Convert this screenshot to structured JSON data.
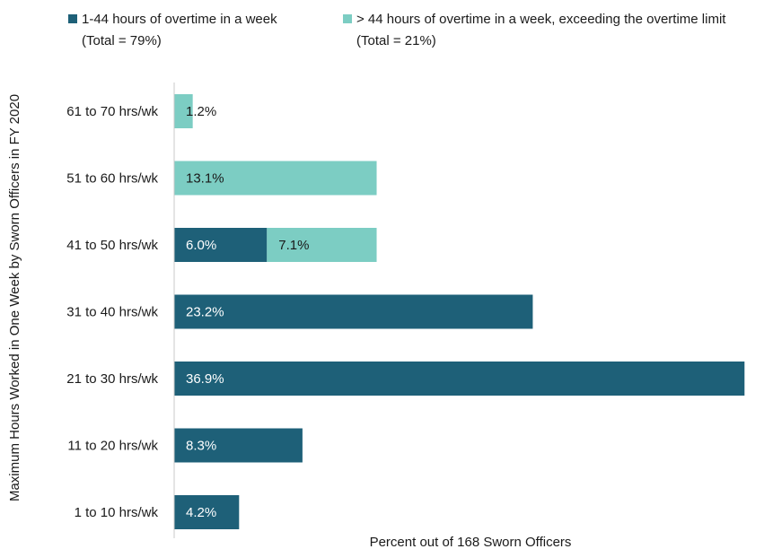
{
  "chart_data": {
    "type": "bar",
    "orientation": "horizontal",
    "stacked": true,
    "categories": [
      "61 to 70 hrs/wk",
      "51 to 60 hrs/wk",
      "41 to 50 hrs/wk",
      "31 to 40 hrs/wk",
      "21 to 30 hrs/wk",
      "11 to 20 hrs/wk",
      "1 to 10 hrs/wk"
    ],
    "series": [
      {
        "name": "1-44 hours of overtime in a week",
        "name_line2": "(Total = 79%)",
        "color": "#1e6078",
        "label_color": "#ffffff",
        "values": [
          0,
          0,
          6.0,
          23.2,
          36.9,
          8.3,
          4.2
        ],
        "labels": [
          "",
          "",
          "6.0%",
          "23.2%",
          "36.9%",
          "8.3%",
          "4.2%"
        ]
      },
      {
        "name": "> 44 hours of overtime in a week, exceeding the overtime limit",
        "name_line2": "(Total = 21%)",
        "color": "#7ccdc3",
        "label_color": "#1a1a1a",
        "values": [
          1.2,
          13.1,
          7.1,
          0,
          0,
          0,
          0
        ],
        "labels": [
          "1.2%",
          "13.1%",
          "7.1%",
          "",
          "",
          "",
          ""
        ]
      }
    ],
    "xlabel": "Percent out of 168 Sworn Officers",
    "ylabel": "Maximum Hours Worked in One Week by Sworn Officers in FY 2020",
    "xlim": [
      0,
      37
    ],
    "grid": false,
    "legend_position": "top"
  }
}
